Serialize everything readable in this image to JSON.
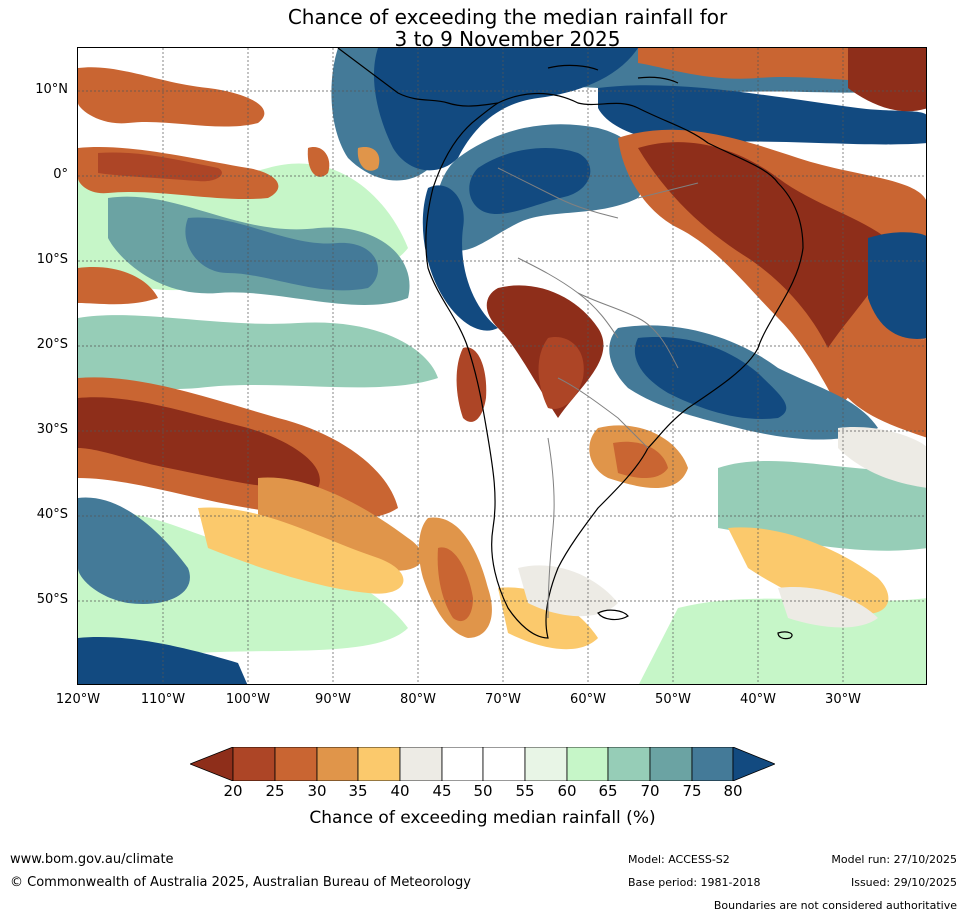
{
  "title": {
    "line1": "Chance of exceeding the median rainfall for",
    "line2": "3 to 9 November 2025"
  },
  "map": {
    "region": "South America",
    "lat_labels": [
      "10°N",
      "0°",
      "10°S",
      "20°S",
      "30°S",
      "40°S",
      "50°S"
    ],
    "lon_labels": [
      "120°W",
      "110°W",
      "100°W",
      "90°W",
      "80°W",
      "70°W",
      "60°W",
      "50°W",
      "40°W",
      "30°W"
    ],
    "lat_range": [
      -60,
      15
    ],
    "lon_range": [
      -120,
      -20
    ],
    "colors": {
      "below_20": "#8e2e1a",
      "20_25": "#ad4526",
      "25_30": "#c96532",
      "30_35": "#e0954a",
      "35_40": "#fbc96c",
      "40_45": "#edebe5",
      "45_50": "#ffffff",
      "50_55": "#ffffff",
      "55_60": "#e8f5e6",
      "60_65": "#c6f6c8",
      "65_70": "#96cdb7",
      "70_75": "#6ba3a3",
      "75_80": "#447a98",
      "above_80": "#124a80"
    }
  },
  "colorbar": {
    "ticks": [
      "20",
      "25",
      "30",
      "35",
      "40",
      "45",
      "50",
      "55",
      "60",
      "65",
      "70",
      "75",
      "80"
    ],
    "label": "Chance of exceeding median rainfall (%)"
  },
  "footer": {
    "url": "www.bom.gov.au/climate",
    "copyright": "© Commonwealth of Australia 2025, Australian Bureau of Meteorology",
    "model": "Model: ACCESS-S2",
    "base_period": "Base period: 1981-2018",
    "model_run": "Model run: 27/10/2025",
    "issued": "Issued: 29/10/2025",
    "disclaimer": "Boundaries are not considered authoritative"
  }
}
